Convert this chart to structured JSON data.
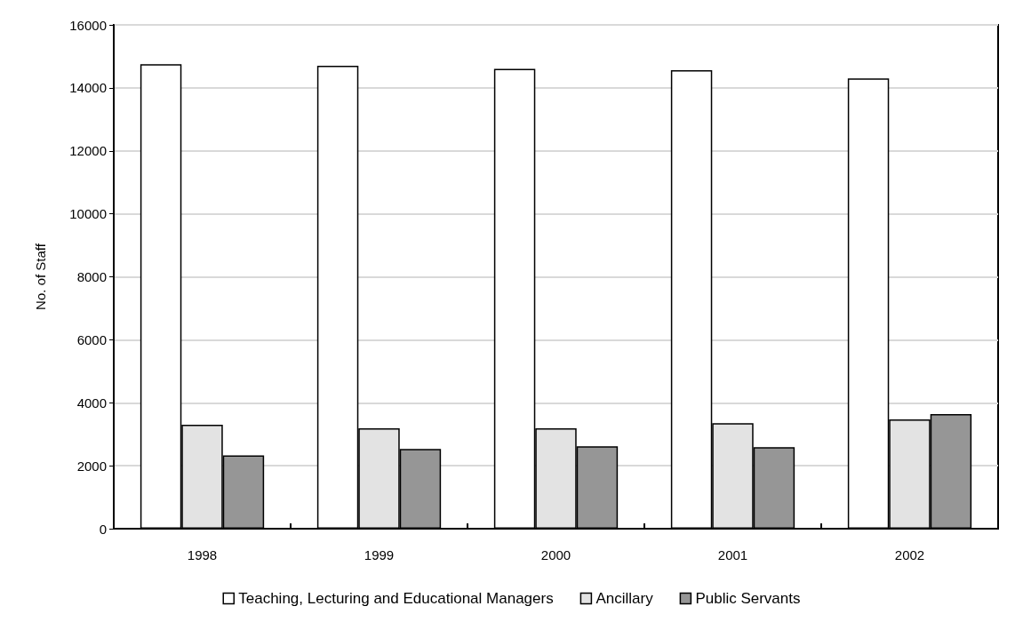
{
  "chart_data": {
    "type": "bar",
    "ylabel": "No. of Staff",
    "categories": [
      "1998",
      "1999",
      "2000",
      "2001",
      "2002"
    ],
    "series": [
      {
        "name": "Teaching, Lecturing and Educational Managers",
        "color": "#ffffff",
        "values": [
          14750,
          14700,
          14600,
          14560,
          14300
        ]
      },
      {
        "name": "Ancillary",
        "color": "#e3e3e3",
        "values": [
          3300,
          3190,
          3190,
          3350,
          3470
        ]
      },
      {
        "name": "Public Servants",
        "color": "#969696",
        "values": [
          2330,
          2530,
          2620,
          2590,
          3640
        ]
      }
    ],
    "ylim": [
      0,
      16000
    ],
    "yticks": [
      0,
      2000,
      4000,
      6000,
      8000,
      10000,
      12000,
      14000,
      16000
    ],
    "grid": "y",
    "legend": "bottom"
  }
}
